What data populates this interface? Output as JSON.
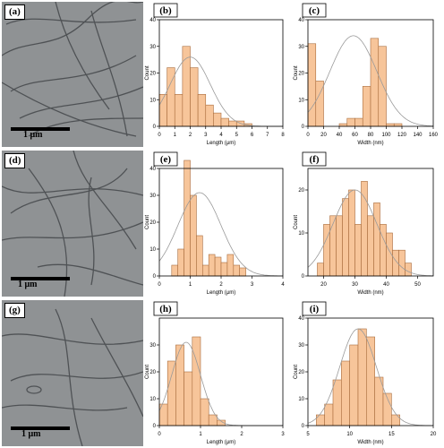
{
  "panels": {
    "a": {
      "label": "(a)",
      "scale": "1 μm"
    },
    "d": {
      "label": "(d)",
      "scale": "1 μm"
    },
    "g": {
      "label": "(g)",
      "scale": "1 μm"
    }
  },
  "colors": {
    "bar_fill": "#f7c59a",
    "bar_stroke": "#a86c3c",
    "fit_line": "#9a9a9a"
  },
  "chart_data": [
    {
      "panel": "(b)",
      "type": "bar",
      "subtype": "histogram_with_normal_fit",
      "xlabel": "Length (μm)",
      "ylabel": "Count",
      "xlim": [
        0,
        8
      ],
      "ylim": [
        0,
        40
      ],
      "xticks": [
        "0",
        "1",
        "2",
        "3",
        "4",
        "5",
        "6",
        "7",
        "8"
      ],
      "yticks": [
        "0",
        "10",
        "20",
        "30",
        "40"
      ],
      "bin_edges": [
        0,
        0.5,
        1,
        1.5,
        2,
        2.5,
        3,
        3.5,
        4,
        4.5,
        5,
        5.5,
        6
      ],
      "values": [
        12,
        22,
        12,
        30,
        22,
        12,
        8,
        5,
        3,
        2,
        2,
        1
      ],
      "fit": {
        "mean": 2.0,
        "sd": 1.3,
        "peak": 26
      }
    },
    {
      "panel": "(c)",
      "type": "bar",
      "subtype": "histogram_with_normal_fit",
      "xlabel": "Width (nm)",
      "ylabel": "Count",
      "xlim": [
        0,
        160
      ],
      "ylim": [
        0,
        40
      ],
      "xticks": [
        "0",
        "20",
        "40",
        "60",
        "80",
        "100",
        "120",
        "140",
        "160"
      ],
      "yticks": [
        "0",
        "10",
        "20",
        "30",
        "40"
      ],
      "bin_edges": [
        0,
        10,
        20,
        30,
        40,
        50,
        60,
        70,
        80,
        90,
        100,
        110,
        120,
        130,
        140
      ],
      "values": [
        31,
        17,
        0,
        0,
        1,
        3,
        3,
        15,
        33,
        30,
        1,
        1,
        0,
        0
      ],
      "fit": {
        "mean": 58,
        "sd": 30,
        "peak": 34
      }
    },
    {
      "panel": "(e)",
      "type": "bar",
      "subtype": "histogram_with_normal_fit",
      "xlabel": "Length (μm)",
      "ylabel": "Count",
      "xlim": [
        0,
        4
      ],
      "ylim": [
        0,
        40
      ],
      "xticks": [
        "0",
        "1",
        "2",
        "3",
        "4"
      ],
      "yticks": [
        "0",
        "10",
        "20",
        "30",
        "40"
      ],
      "bin_edges": [
        0.4,
        0.6,
        0.8,
        1.0,
        1.2,
        1.4,
        1.6,
        1.8,
        2.0,
        2.2,
        2.4,
        2.6,
        2.8
      ],
      "values": [
        4,
        10,
        43,
        30,
        15,
        4,
        8,
        7,
        5,
        8,
        4,
        3
      ],
      "fit": {
        "mean": 1.3,
        "sd": 0.7,
        "peak": 31
      }
    },
    {
      "panel": "(f)",
      "type": "bar",
      "subtype": "histogram_with_normal_fit",
      "xlabel": "Width (nm)",
      "ylabel": "Count",
      "xlim": [
        15,
        55
      ],
      "ylim": [
        0,
        25
      ],
      "xticks": [
        "20",
        "30",
        "40",
        "50"
      ],
      "yticks": [
        "0",
        "10",
        "20"
      ],
      "bin_edges": [
        18,
        20,
        22,
        24,
        26,
        28,
        30,
        32,
        34,
        36,
        38,
        40,
        42,
        44,
        46,
        48
      ],
      "values": [
        3,
        12,
        14,
        14,
        18,
        20,
        12,
        22,
        14,
        17,
        12,
        10,
        6,
        6,
        3
      ],
      "fit": {
        "mean": 30,
        "sd": 7,
        "peak": 20
      }
    },
    {
      "panel": "(h)",
      "type": "bar",
      "subtype": "histogram_with_normal_fit",
      "xlabel": "Length (μm)",
      "ylabel": "Count",
      "xlim": [
        0,
        3
      ],
      "ylim": [
        0,
        40
      ],
      "xticks": [
        "0",
        "1",
        "2",
        "3"
      ],
      "yticks": [
        "0",
        "10",
        "20",
        "30"
      ],
      "bin_edges": [
        0,
        0.2,
        0.4,
        0.6,
        0.8,
        1.0,
        1.2,
        1.4,
        1.6
      ],
      "values": [
        8,
        24,
        30,
        20,
        33,
        10,
        4,
        2
      ],
      "fit": {
        "mean": 0.65,
        "sd": 0.35,
        "peak": 31
      }
    },
    {
      "panel": "(i)",
      "type": "bar",
      "subtype": "histogram_with_normal_fit",
      "xlabel": "Width (nm)",
      "ylabel": "Count",
      "xlim": [
        5,
        20
      ],
      "ylim": [
        0,
        40
      ],
      "xticks": [
        "5",
        "10",
        "15",
        "20"
      ],
      "yticks": [
        "0",
        "10",
        "20",
        "30",
        "40"
      ],
      "bin_edges": [
        6,
        7,
        8,
        9,
        10,
        11,
        12,
        13,
        14,
        15,
        16
      ],
      "values": [
        4,
        8,
        17,
        24,
        30,
        36,
        33,
        18,
        12,
        4
      ],
      "fit": {
        "mean": 11.0,
        "sd": 2.2,
        "peak": 36
      }
    }
  ]
}
